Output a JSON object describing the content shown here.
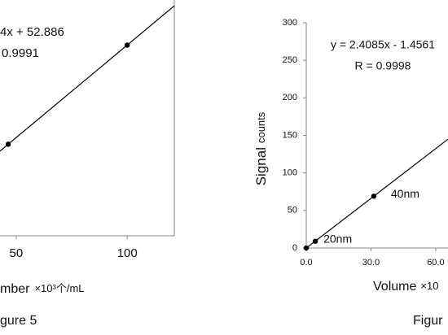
{
  "chart_data": [
    {
      "type": "scatter",
      "equation": "4x + 52.886",
      "r_value": "0.9991",
      "x": [
        46.4,
        100
      ],
      "values": [
        109,
        227
      ],
      "xlim": [
        42.7,
        121.2
      ],
      "ylim": [
        0,
        300
      ],
      "xticks": [
        50,
        100
      ],
      "x_label": "mber",
      "x_label_unit": "×10³个/mL",
      "caption": "gure 5",
      "color": "#000000"
    },
    {
      "type": "scatter",
      "equation": "y = 2.4085x - 1.4561",
      "r_value": "R = 0.9998",
      "x": [
        0,
        4.2,
        31.3
      ],
      "values": [
        0,
        9,
        69
      ],
      "annotations": [
        "20nm",
        "40nm"
      ],
      "xlim": [
        0,
        65.7
      ],
      "ylim": [
        0,
        300
      ],
      "xticks": [
        {
          "value": 0,
          "label": "0.0"
        },
        {
          "value": 30,
          "label": "30.0"
        },
        {
          "value": 60,
          "label": "60.0"
        }
      ],
      "yticks": [
        0,
        50,
        100,
        150,
        200,
        250,
        300
      ],
      "y_label": "Signal",
      "y_label_unit": "counts",
      "x_label": "Volume",
      "x_label_unit": "×10",
      "caption": "Figur",
      "color": "#000000"
    }
  ]
}
